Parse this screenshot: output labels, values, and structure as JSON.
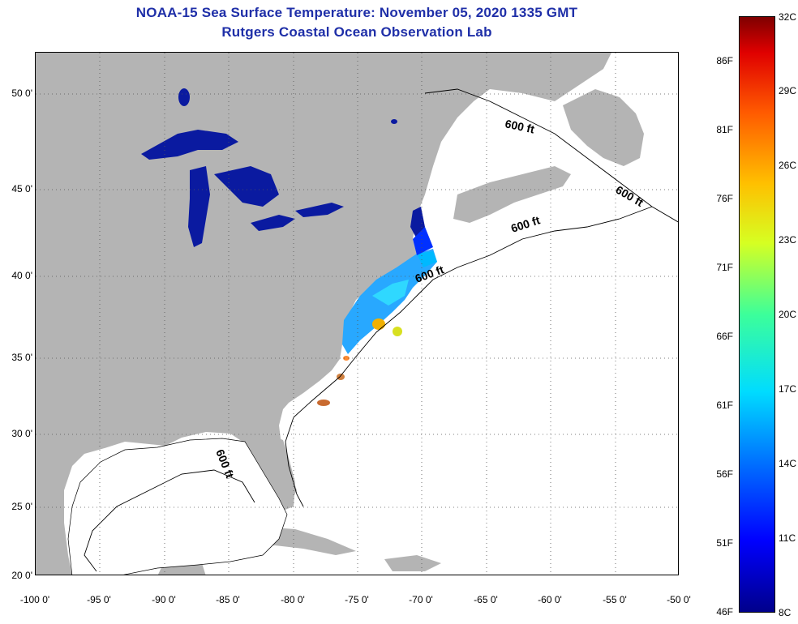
{
  "title": {
    "line1": "NOAA-15 Sea Surface Temperature:  November 05, 2020 1335 GMT",
    "line2": "Rutgers Coastal Ocean Observation Lab"
  },
  "map": {
    "lon_labels": [
      "-100 0'",
      "-95 0'",
      "-90 0'",
      "-85 0'",
      "-80 0'",
      "-75 0'",
      "-70 0'",
      "-65 0'",
      "-60 0'",
      "-55 0'",
      "-50 0'"
    ],
    "lat_labels": [
      "50 0'",
      "45 0'",
      "40 0'",
      "35 0'",
      "30 0'",
      "25 0'",
      "20 0'"
    ],
    "contour_label": "600 ft",
    "colors": {
      "land": "#b4b4b4",
      "ocean_nodata": "#ffffff",
      "lakes": "#0a1aa0"
    }
  },
  "colorbar": {
    "fahrenheit": [
      "86F",
      "81F",
      "76F",
      "71F",
      "66F",
      "61F",
      "56F",
      "51F",
      "46F"
    ],
    "celsius": [
      "32C",
      "29C",
      "26C",
      "23C",
      "20C",
      "17C",
      "14C",
      "11C",
      "8C"
    ]
  }
}
